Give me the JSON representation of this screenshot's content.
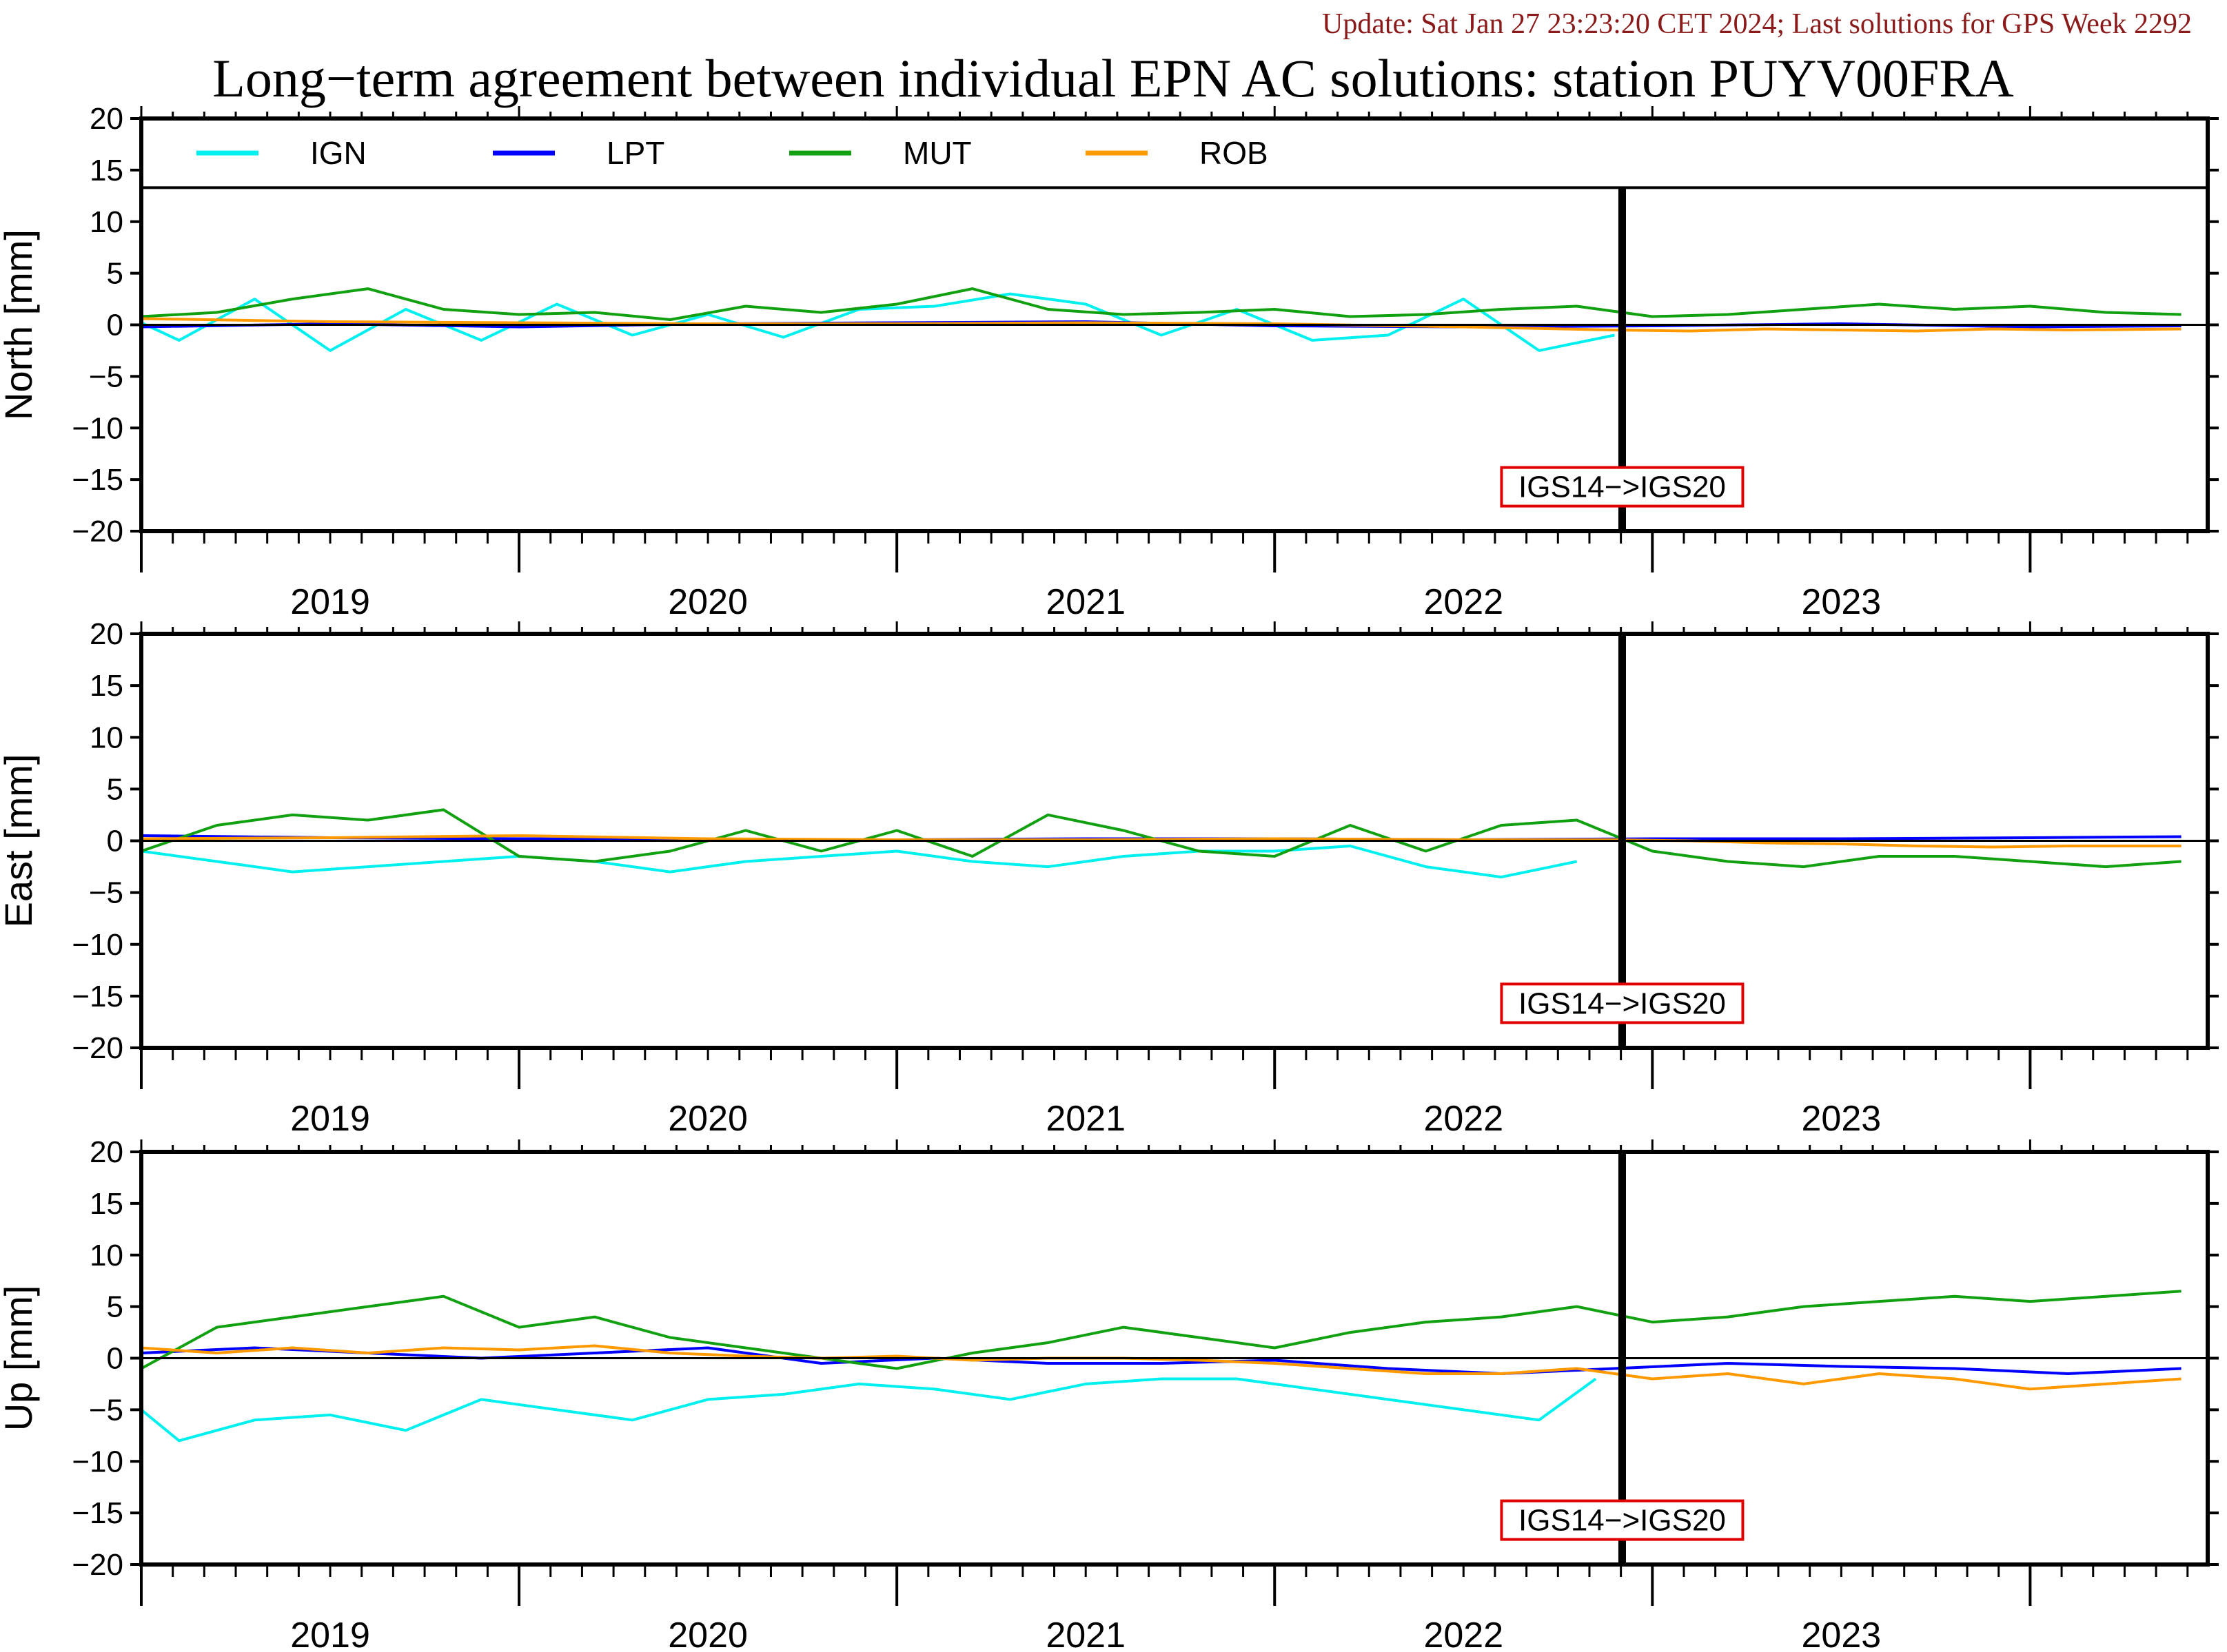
{
  "update_text": "Update: Sat Jan 27 23:23:20 CET 2024; Last solutions for GPS Week 2292",
  "title": "Long−term agreement between individual EPN AC solutions: station PUYV00FRA",
  "colors": {
    "IGN": "#00f0f0",
    "LPT": "#0000ff",
    "MUT": "#10a010",
    "ROB": "#ff9900",
    "update_text": "#8b1a1a",
    "annotation_border": "#e00000"
  },
  "chart_data": {
    "type": "line",
    "x_range": [
      2018.5,
      2023.97
    ],
    "ylim": [
      -20,
      20
    ],
    "y_ticks": [
      -20,
      -15,
      -10,
      -5,
      0,
      5,
      10,
      15,
      20
    ],
    "y_tick_labels": [
      "−20",
      "−15",
      "−10",
      "−5",
      "0",
      "5",
      "10",
      "15",
      "20"
    ],
    "x_tick_labels": [
      "2019",
      "2020",
      "2021",
      "2022",
      "2023"
    ],
    "x_label_positions": [
      2019.0,
      2020.0,
      2021.0,
      2022.0,
      2023.0
    ],
    "legend": [
      {
        "name": "IGN",
        "color": "#00f0f0"
      },
      {
        "name": "LPT",
        "color": "#0000ff"
      },
      {
        "name": "MUT",
        "color": "#10a010"
      },
      {
        "name": "ROB",
        "color": "#ff9900"
      }
    ],
    "reference_change": {
      "x": 2022.42,
      "label": "IGS14−>IGS20"
    },
    "panels": [
      {
        "ylabel": "North [mm]",
        "has_legend": true,
        "series": [
          {
            "name": "IGN",
            "x": [
              2018.5,
              2018.6,
              2018.8,
              2019.0,
              2019.2,
              2019.4,
              2019.6,
              2019.8,
              2020.0,
              2020.2,
              2020.4,
              2020.6,
              2020.8,
              2021.0,
              2021.2,
              2021.4,
              2021.6,
              2021.8,
              2022.0,
              2022.2,
              2022.4
            ],
            "y": [
              0.2,
              -1.5,
              2.5,
              -2.5,
              1.5,
              -1.5,
              2.0,
              -1.0,
              1.0,
              -1.2,
              1.5,
              1.8,
              3.0,
              2.0,
              -1.0,
              1.5,
              -1.5,
              -1.0,
              2.5,
              -2.5,
              -1.0
            ]
          },
          {
            "name": "LPT",
            "x": [
              2018.5,
              2019.0,
              2019.5,
              2020.0,
              2020.5,
              2021.0,
              2021.5,
              2022.0,
              2022.5,
              2023.0,
              2023.5,
              2023.9
            ],
            "y": [
              -0.2,
              0.1,
              -0.2,
              0.1,
              0.2,
              0.3,
              -0.1,
              -0.2,
              -0.1,
              0.1,
              -0.2,
              -0.1
            ]
          },
          {
            "name": "MUT",
            "x": [
              2018.5,
              2018.7,
              2018.9,
              2019.1,
              2019.3,
              2019.5,
              2019.7,
              2019.9,
              2020.1,
              2020.3,
              2020.5,
              2020.7,
              2020.9,
              2021.1,
              2021.3,
              2021.5,
              2021.7,
              2021.9,
              2022.1,
              2022.3,
              2022.5,
              2022.7,
              2022.9,
              2023.1,
              2023.3,
              2023.5,
              2023.7,
              2023.9
            ],
            "y": [
              0.8,
              1.2,
              2.5,
              3.5,
              1.5,
              1.0,
              1.2,
              0.5,
              1.8,
              1.2,
              2.0,
              3.5,
              1.5,
              1.0,
              1.2,
              1.5,
              0.8,
              1.0,
              1.5,
              1.8,
              0.8,
              1.0,
              1.5,
              2.0,
              1.5,
              1.8,
              1.2,
              1.0
            ]
          },
          {
            "name": "ROB",
            "x": [
              2018.5,
              2019.0,
              2019.5,
              2020.0,
              2020.5,
              2021.0,
              2021.5,
              2022.0,
              2022.4,
              2022.6,
              2022.8,
              2023.0,
              2023.2,
              2023.4,
              2023.6,
              2023.9
            ],
            "y": [
              0.6,
              0.3,
              0.2,
              0.1,
              0.1,
              0.2,
              0.1,
              -0.2,
              -0.5,
              -0.6,
              -0.4,
              -0.5,
              -0.6,
              -0.4,
              -0.5,
              -0.4
            ]
          }
        ]
      },
      {
        "ylabel": "East [mm]",
        "has_legend": false,
        "series": [
          {
            "name": "IGN",
            "x": [
              2018.5,
              2018.7,
              2018.9,
              2019.1,
              2019.3,
              2019.5,
              2019.7,
              2019.9,
              2020.1,
              2020.3,
              2020.5,
              2020.7,
              2020.9,
              2021.1,
              2021.3,
              2021.5,
              2021.7,
              2021.9,
              2022.1,
              2022.3
            ],
            "y": [
              -1.0,
              -2.0,
              -3.0,
              -2.5,
              -2.0,
              -1.5,
              -2.0,
              -3.0,
              -2.0,
              -1.5,
              -1.0,
              -2.0,
              -2.5,
              -1.5,
              -1.0,
              -1.0,
              -0.5,
              -2.5,
              -3.5,
              -2.0
            ]
          },
          {
            "name": "LPT",
            "x": [
              2018.5,
              2019.0,
              2019.5,
              2020.0,
              2020.5,
              2021.0,
              2021.5,
              2022.0,
              2022.5,
              2023.0,
              2023.5,
              2023.9
            ],
            "y": [
              0.5,
              0.3,
              0.2,
              0.1,
              0.1,
              0.2,
              0.2,
              0.1,
              0.2,
              0.2,
              0.3,
              0.4
            ]
          },
          {
            "name": "MUT",
            "x": [
              2018.5,
              2018.7,
              2018.9,
              2019.1,
              2019.3,
              2019.5,
              2019.7,
              2019.9,
              2020.1,
              2020.3,
              2020.5,
              2020.7,
              2020.9,
              2021.1,
              2021.3,
              2021.5,
              2021.7,
              2021.9,
              2022.1,
              2022.3,
              2022.5,
              2022.7,
              2022.9,
              2023.1,
              2023.3,
              2023.5,
              2023.7,
              2023.9
            ],
            "y": [
              -1.0,
              1.5,
              2.5,
              2.0,
              3.0,
              -1.5,
              -2.0,
              -1.0,
              1.0,
              -1.0,
              1.0,
              -1.5,
              2.5,
              1.0,
              -1.0,
              -1.5,
              1.5,
              -1.0,
              1.5,
              2.0,
              -1.0,
              -2.0,
              -2.5,
              -1.5,
              -1.5,
              -2.0,
              -2.5,
              -2.0
            ]
          },
          {
            "name": "ROB",
            "x": [
              2018.5,
              2019.0,
              2019.5,
              2020.0,
              2020.5,
              2021.0,
              2021.5,
              2022.0,
              2022.4,
              2022.6,
              2022.8,
              2023.0,
              2023.2,
              2023.4,
              2023.6,
              2023.9
            ],
            "y": [
              0.2,
              0.3,
              0.5,
              0.2,
              0.1,
              0.1,
              0.2,
              0.1,
              0.1,
              0.0,
              -0.2,
              -0.3,
              -0.5,
              -0.6,
              -0.5,
              -0.5
            ]
          }
        ]
      },
      {
        "ylabel": "Up [mm]",
        "has_legend": false,
        "series": [
          {
            "name": "IGN",
            "x": [
              2018.5,
              2018.6,
              2018.8,
              2019.0,
              2019.2,
              2019.4,
              2019.6,
              2019.8,
              2020.0,
              2020.2,
              2020.4,
              2020.6,
              2020.8,
              2021.0,
              2021.2,
              2021.4,
              2021.6,
              2021.8,
              2022.0,
              2022.2,
              2022.35
            ],
            "y": [
              -5.0,
              -8.0,
              -6.0,
              -5.5,
              -7.0,
              -4.0,
              -5.0,
              -6.0,
              -4.0,
              -3.5,
              -2.5,
              -3.0,
              -4.0,
              -2.5,
              -2.0,
              -2.0,
              -3.0,
              -4.0,
              -5.0,
              -6.0,
              -2.0
            ]
          },
          {
            "name": "LPT",
            "x": [
              2018.5,
              2018.8,
              2019.1,
              2019.4,
              2019.7,
              2020.0,
              2020.3,
              2020.6,
              2020.9,
              2021.2,
              2021.5,
              2021.8,
              2022.1,
              2022.4,
              2022.7,
              2023.0,
              2023.3,
              2023.6,
              2023.9
            ],
            "y": [
              0.5,
              1.0,
              0.5,
              0.0,
              0.5,
              1.0,
              -0.5,
              0.0,
              -0.5,
              -0.5,
              -0.2,
              -1.0,
              -1.5,
              -1.0,
              -0.5,
              -0.8,
              -1.0,
              -1.5,
              -1.0
            ]
          },
          {
            "name": "MUT",
            "x": [
              2018.5,
              2018.7,
              2018.9,
              2019.1,
              2019.3,
              2019.5,
              2019.7,
              2019.9,
              2020.1,
              2020.3,
              2020.5,
              2020.7,
              2020.9,
              2021.1,
              2021.3,
              2021.5,
              2021.7,
              2021.9,
              2022.1,
              2022.3,
              2022.5,
              2022.7,
              2022.9,
              2023.1,
              2023.3,
              2023.5,
              2023.7,
              2023.9
            ],
            "y": [
              -1.0,
              3.0,
              4.0,
              5.0,
              6.0,
              3.0,
              4.0,
              2.0,
              1.0,
              0.0,
              -1.0,
              0.5,
              1.5,
              3.0,
              2.0,
              1.0,
              2.5,
              3.5,
              4.0,
              5.0,
              3.5,
              4.0,
              5.0,
              5.5,
              6.0,
              5.5,
              6.0,
              6.5
            ]
          },
          {
            "name": "ROB",
            "x": [
              2018.5,
              2018.7,
              2018.9,
              2019.1,
              2019.3,
              2019.5,
              2019.7,
              2019.9,
              2020.1,
              2020.3,
              2020.5,
              2020.7,
              2020.9,
              2021.1,
              2021.3,
              2021.5,
              2021.7,
              2021.9,
              2022.1,
              2022.3,
              2022.5,
              2022.7,
              2022.9,
              2023.1,
              2023.3,
              2023.5,
              2023.7,
              2023.9
            ],
            "y": [
              1.0,
              0.5,
              1.0,
              0.5,
              1.0,
              0.8,
              1.2,
              0.5,
              0.2,
              0.0,
              0.2,
              -0.2,
              0.0,
              0.0,
              -0.2,
              -0.5,
              -1.0,
              -1.5,
              -1.5,
              -1.0,
              -2.0,
              -1.5,
              -2.5,
              -1.5,
              -2.0,
              -3.0,
              -2.5,
              -2.0
            ]
          }
        ]
      }
    ]
  }
}
